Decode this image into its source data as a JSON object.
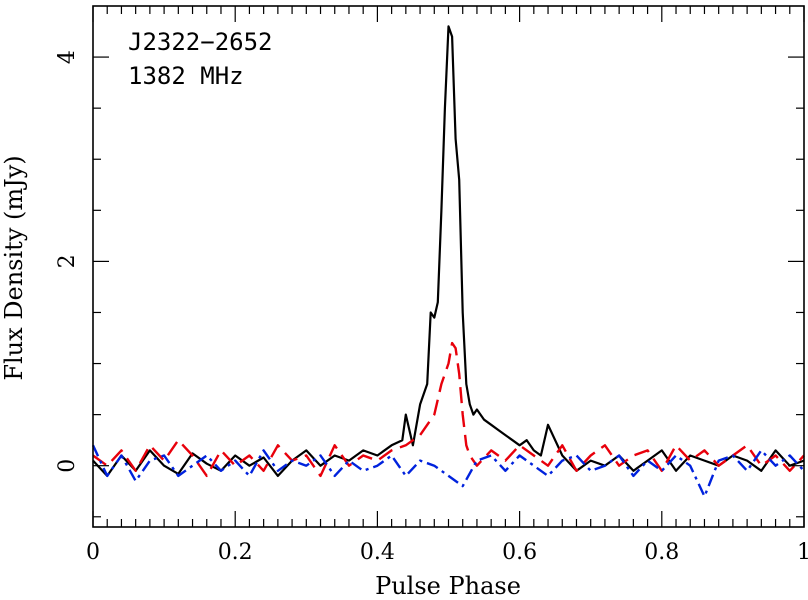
{
  "chart_data": {
    "type": "line",
    "xlabel": "Pulse Phase",
    "ylabel": "Flux Density (mJy)",
    "xlim": [
      0,
      1
    ],
    "ylim": [
      -0.6,
      4.5
    ],
    "x_ticks": [
      0,
      0.2,
      0.4,
      0.6,
      0.8,
      1
    ],
    "x_tick_labels": [
      "0",
      "0.2",
      "0.4",
      "0.6",
      "0.8",
      "1"
    ],
    "y_ticks": [
      0,
      2,
      4
    ],
    "y_tick_labels": [
      "0",
      "2",
      "4"
    ],
    "grid": false,
    "annotations": [
      "J2322−2652",
      "1382 MHz"
    ],
    "series": [
      {
        "style": "solid",
        "color": "#000000",
        "x": [
          0,
          0.02,
          0.04,
          0.06,
          0.08,
          0.1,
          0.12,
          0.14,
          0.16,
          0.18,
          0.2,
          0.22,
          0.24,
          0.26,
          0.28,
          0.3,
          0.32,
          0.34,
          0.36,
          0.38,
          0.4,
          0.42,
          0.435,
          0.44,
          0.45,
          0.46,
          0.47,
          0.475,
          0.48,
          0.485,
          0.49,
          0.495,
          0.5,
          0.505,
          0.51,
          0.515,
          0.52,
          0.525,
          0.53,
          0.535,
          0.54,
          0.55,
          0.56,
          0.57,
          0.58,
          0.59,
          0.6,
          0.61,
          0.62,
          0.63,
          0.64,
          0.66,
          0.68,
          0.7,
          0.72,
          0.74,
          0.76,
          0.78,
          0.8,
          0.82,
          0.84,
          0.86,
          0.88,
          0.9,
          0.92,
          0.94,
          0.96,
          0.98,
          1.0
        ],
        "y": [
          0.05,
          -0.1,
          0.1,
          -0.05,
          0.15,
          0.0,
          -0.08,
          0.12,
          0.02,
          -0.05,
          0.1,
          0.0,
          0.08,
          -0.1,
          0.05,
          0.15,
          0.0,
          0.1,
          0.05,
          0.15,
          0.1,
          0.2,
          0.25,
          0.5,
          0.2,
          0.6,
          0.8,
          1.5,
          1.45,
          1.6,
          2.5,
          3.5,
          4.3,
          4.2,
          3.2,
          2.8,
          1.5,
          0.8,
          0.6,
          0.5,
          0.55,
          0.45,
          0.4,
          0.35,
          0.3,
          0.25,
          0.2,
          0.25,
          0.15,
          0.1,
          0.4,
          0.1,
          -0.05,
          0.05,
          0.0,
          0.1,
          -0.05,
          0.05,
          0.15,
          -0.05,
          0.1,
          0.05,
          0.0,
          0.1,
          0.05,
          -0.05,
          0.15,
          0.0,
          0.05
        ]
      },
      {
        "style": "dashed",
        "color": "#e8000b",
        "x": [
          0,
          0.02,
          0.04,
          0.06,
          0.08,
          0.1,
          0.12,
          0.14,
          0.16,
          0.18,
          0.2,
          0.22,
          0.24,
          0.26,
          0.28,
          0.3,
          0.32,
          0.34,
          0.36,
          0.38,
          0.4,
          0.42,
          0.44,
          0.46,
          0.48,
          0.49,
          0.5,
          0.505,
          0.51,
          0.515,
          0.52,
          0.525,
          0.53,
          0.54,
          0.56,
          0.58,
          0.6,
          0.62,
          0.64,
          0.66,
          0.68,
          0.7,
          0.72,
          0.74,
          0.76,
          0.78,
          0.8,
          0.82,
          0.84,
          0.86,
          0.88,
          0.9,
          0.92,
          0.94,
          0.96,
          0.98,
          1.0
        ],
        "y": [
          0.1,
          0.0,
          0.15,
          -0.05,
          0.2,
          0.05,
          0.25,
          0.1,
          -0.1,
          0.15,
          0.0,
          0.1,
          -0.05,
          0.2,
          0.05,
          0.1,
          -0.1,
          0.2,
          0.0,
          0.1,
          0.05,
          0.15,
          0.2,
          0.3,
          0.5,
          0.8,
          1.0,
          1.2,
          1.15,
          0.9,
          0.5,
          0.2,
          0.1,
          0.0,
          0.15,
          0.05,
          0.2,
          0.1,
          0.0,
          0.2,
          -0.05,
          0.1,
          0.2,
          0.0,
          0.1,
          0.15,
          -0.05,
          0.2,
          0.05,
          0.15,
          0.0,
          0.1,
          0.2,
          0.0,
          0.1,
          -0.05,
          0.1
        ]
      },
      {
        "style": "dashdot",
        "color": "#0022dd",
        "x": [
          0,
          0.02,
          0.04,
          0.06,
          0.08,
          0.1,
          0.12,
          0.14,
          0.16,
          0.18,
          0.2,
          0.22,
          0.24,
          0.26,
          0.28,
          0.3,
          0.32,
          0.34,
          0.36,
          0.38,
          0.4,
          0.42,
          0.44,
          0.46,
          0.48,
          0.5,
          0.52,
          0.54,
          0.56,
          0.58,
          0.6,
          0.62,
          0.64,
          0.66,
          0.68,
          0.7,
          0.72,
          0.74,
          0.76,
          0.78,
          0.8,
          0.82,
          0.84,
          0.86,
          0.88,
          0.9,
          0.92,
          0.94,
          0.96,
          0.98,
          1.0
        ],
        "y": [
          0.2,
          -0.1,
          0.1,
          -0.15,
          0.05,
          0.1,
          -0.1,
          0.0,
          0.1,
          -0.05,
          0.05,
          -0.1,
          0.15,
          -0.05,
          0.05,
          0.0,
          0.1,
          -0.1,
          0.05,
          -0.05,
          0.0,
          0.1,
          -0.1,
          0.05,
          0.0,
          -0.1,
          -0.2,
          0.05,
          0.1,
          -0.05,
          0.1,
          0.0,
          -0.1,
          0.05,
          0.1,
          -0.05,
          0.0,
          0.1,
          -0.1,
          0.05,
          -0.05,
          0.1,
          0.0,
          -0.3,
          0.05,
          0.1,
          -0.05,
          0.15,
          0.0,
          0.1,
          -0.05
        ]
      }
    ]
  }
}
